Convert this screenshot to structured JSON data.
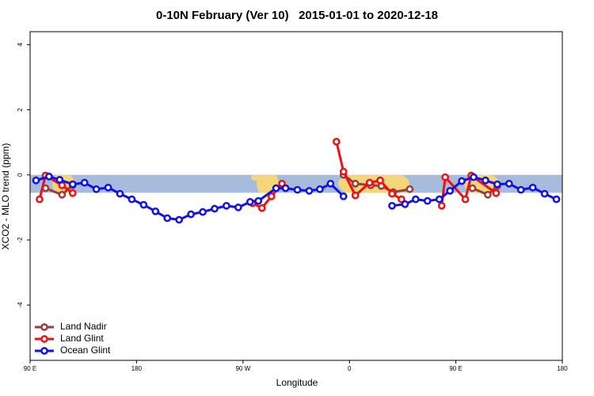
{
  "chart_data": {
    "type": "line",
    "title": "0-10N February (Ver 10)   2015-01-01 to 2020-12-18",
    "x_label": "Longitude",
    "y_label": "XCO2 - MLO trend (ppm)",
    "xlim": [
      90,
      540
    ],
    "ylim": [
      -5.7,
      4.4
    ],
    "xticks": [
      {
        "value": 90,
        "label": "90 E"
      },
      180,
      {
        "value": 270,
        "label": "90 W"
      },
      {
        "value": 360,
        "label": "0"
      },
      {
        "value": 450,
        "label": "90 E"
      },
      {
        "value": 540,
        "label": "180"
      }
    ],
    "yticks": [
      4,
      2,
      0,
      -2,
      -4
    ],
    "shaded_band": [
      0,
      -0.55
    ],
    "legend": "bottom-left",
    "series": [
      {
        "name": "Land Nadir",
        "color": "#9e3a3a",
        "x": [
          103,
          117,
          126,
          null,
          355,
          365,
          378,
          387,
          397,
          411,
          null,
          464,
          477,
          485
        ],
        "values": [
          -0.41,
          -0.61,
          -0.32,
          null,
          0,
          -0.27,
          -0.32,
          -0.34,
          -0.53,
          -0.44,
          null,
          -0.41,
          -0.61,
          -0.34
        ]
      },
      {
        "name": "Land Glint",
        "color": "#ee1111",
        "x": [
          98,
          103,
          117,
          126,
          null,
          278,
          286,
          294,
          303,
          null,
          349,
          355,
          365,
          377,
          386,
          396,
          404,
          null,
          438,
          441,
          458,
          463,
          484
        ],
        "values": [
          -0.75,
          -0.02,
          -0.32,
          -0.56,
          null,
          -0.87,
          -1.02,
          -0.66,
          -0.27,
          null,
          1.02,
          0.1,
          -0.63,
          -0.24,
          -0.17,
          -0.58,
          -0.75,
          null,
          -0.95,
          -0.07,
          -0.75,
          -0.02,
          -0.56
        ]
      },
      {
        "name": "Ocean Glint",
        "color": "#1111ee",
        "x": [
          95,
          106,
          115,
          126,
          136,
          146,
          156,
          166,
          176,
          186,
          196,
          206,
          216,
          226,
          236,
          246,
          256,
          266,
          276,
          283,
          298,
          306,
          316,
          326,
          335,
          344,
          355,
          null,
          396,
          407,
          416,
          426,
          436,
          445,
          455,
          465,
          475,
          485,
          495,
          505,
          515,
          525,
          535
        ],
        "values": [
          -0.17,
          -0.05,
          -0.15,
          -0.29,
          -0.24,
          -0.44,
          -0.39,
          -0.58,
          -0.75,
          -0.92,
          -1.12,
          -1.33,
          -1.38,
          -1.21,
          -1.14,
          -1.04,
          -0.95,
          -1.0,
          -0.83,
          -0.8,
          -0.41,
          -0.41,
          -0.46,
          -0.49,
          -0.44,
          -0.27,
          -0.66,
          null,
          -0.95,
          -0.9,
          -0.75,
          -0.8,
          -0.75,
          -0.49,
          -0.19,
          -0.07,
          -0.17,
          -0.29,
          -0.27,
          -0.46,
          -0.39,
          -0.58,
          -0.75
        ]
      }
    ]
  }
}
